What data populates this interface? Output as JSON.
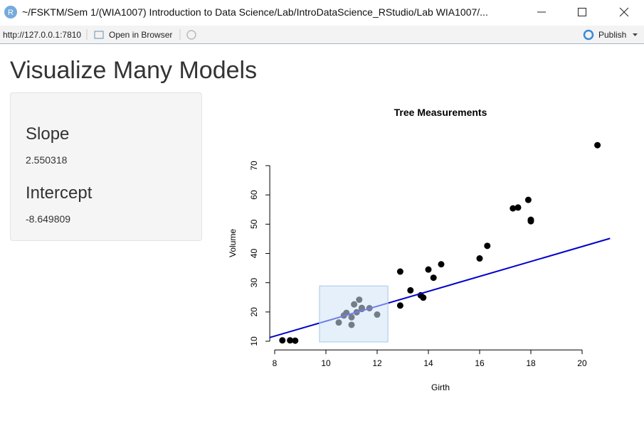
{
  "window": {
    "title": "~/FSKTM/Sem 1/(WIA1007) Introduction to Data Science/Lab/IntroDataScience_RStudio/Lab WIA1007/..."
  },
  "toolbar": {
    "url": "http://127.0.0.1:7810",
    "open": "Open in Browser",
    "publish": "Publish"
  },
  "app": {
    "title": "Visualize Many Models"
  },
  "sidebar": {
    "slope_label": "Slope",
    "intercept_label": "Intercept"
  },
  "chart_data": {
    "type": "scatter",
    "title": "Tree Measurements",
    "x_label": "Girth",
    "y_label": "Volume",
    "x": [
      8.3,
      8.6,
      8.8,
      10.5,
      10.7,
      10.8,
      11.0,
      11.0,
      11.1,
      11.2,
      11.3,
      11.4,
      11.4,
      11.7,
      12.0,
      12.9,
      12.9,
      13.3,
      13.7,
      13.8,
      14.0,
      14.2,
      14.5,
      16.0,
      16.3,
      17.3,
      17.5,
      17.9,
      18.0,
      18.0,
      20.6
    ],
    "values": [
      10.3,
      10.3,
      10.2,
      16.4,
      18.8,
      19.7,
      15.6,
      18.2,
      22.6,
      19.9,
      24.2,
      21.0,
      21.4,
      21.3,
      19.1,
      22.2,
      33.8,
      27.4,
      25.7,
      24.9,
      34.5,
      31.7,
      36.3,
      38.3,
      42.6,
      55.4,
      55.7,
      58.3,
      51.5,
      51.0,
      77.0
    ],
    "color": "#000000",
    "fit": {
      "slope": 2.550318,
      "intercept": -8.649809,
      "color": "#0000cc"
    },
    "brush": {
      "xlim": [
        9.75,
        12.42
      ],
      "ylim": [
        9.76,
        28.9
      ],
      "color": "#cfe3f7"
    },
    "xlim": [
      7.808,
      21.092
    ],
    "ylim": [
      7.528,
      79.672
    ],
    "xticks": [
      8,
      10,
      12,
      14,
      16,
      18,
      20
    ],
    "yticks": [
      10,
      20,
      30,
      40,
      50,
      60,
      70
    ]
  }
}
